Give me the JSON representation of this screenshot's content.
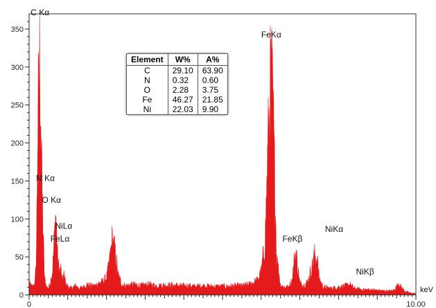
{
  "chart_data": {
    "type": "line",
    "title": "",
    "xlabel": "keV",
    "ylabel": "",
    "xlim": [
      0,
      10
    ],
    "ylim": [
      0,
      370
    ],
    "x_ticks": [
      {
        "value": 0,
        "label": "0"
      },
      {
        "value": 10,
        "label": "10.00"
      }
    ],
    "y_ticks": [
      {
        "value": 0,
        "label": "0"
      },
      {
        "value": 50,
        "label": "50"
      },
      {
        "value": 100,
        "label": "100"
      },
      {
        "value": 150,
        "label": "150"
      },
      {
        "value": 200,
        "label": "200"
      },
      {
        "value": 250,
        "label": "250"
      },
      {
        "value": 300,
        "label": "300"
      },
      {
        "value": 350,
        "label": "350"
      }
    ],
    "series": [
      {
        "color": "#e41a1c",
        "points": [
          [
            0.0,
            18
          ],
          [
            0.05,
            14
          ],
          [
            0.1,
            12
          ],
          [
            0.15,
            20
          ],
          [
            0.18,
            40
          ],
          [
            0.2,
            120
          ],
          [
            0.22,
            250
          ],
          [
            0.26,
            325
          ],
          [
            0.28,
            368
          ],
          [
            0.3,
            300
          ],
          [
            0.32,
            200
          ],
          [
            0.35,
            120
          ],
          [
            0.38,
            60
          ],
          [
            0.4,
            25
          ],
          [
            0.45,
            12
          ],
          [
            0.5,
            10
          ],
          [
            0.55,
            20
          ],
          [
            0.6,
            35
          ],
          [
            0.63,
            60
          ],
          [
            0.65,
            85
          ],
          [
            0.67,
            105
          ],
          [
            0.69,
            128
          ],
          [
            0.71,
            95
          ],
          [
            0.74,
            55
          ],
          [
            0.78,
            35
          ],
          [
            0.82,
            40
          ],
          [
            0.85,
            22
          ],
          [
            0.9,
            30
          ],
          [
            0.95,
            18
          ],
          [
            1.0,
            12
          ],
          [
            1.1,
            10
          ],
          [
            1.2,
            14
          ],
          [
            1.3,
            10
          ],
          [
            1.4,
            12
          ],
          [
            1.5,
            16
          ],
          [
            1.6,
            14
          ],
          [
            1.7,
            14
          ],
          [
            1.8,
            18
          ],
          [
            1.9,
            20
          ],
          [
            2.0,
            26
          ],
          [
            2.05,
            40
          ],
          [
            2.1,
            60
          ],
          [
            2.15,
            85
          ],
          [
            2.2,
            72
          ],
          [
            2.25,
            55
          ],
          [
            2.3,
            30
          ],
          [
            2.4,
            16
          ],
          [
            2.5,
            14
          ],
          [
            2.7,
            16
          ],
          [
            2.9,
            14
          ],
          [
            3.1,
            16
          ],
          [
            3.3,
            14
          ],
          [
            3.5,
            15
          ],
          [
            3.7,
            15
          ],
          [
            3.9,
            14
          ],
          [
            4.1,
            14
          ],
          [
            4.3,
            13
          ],
          [
            4.5,
            14
          ],
          [
            4.7,
            13
          ],
          [
            4.9,
            13
          ],
          [
            5.1,
            13
          ],
          [
            5.3,
            14
          ],
          [
            5.5,
            14
          ],
          [
            5.7,
            16
          ],
          [
            5.9,
            22
          ],
          [
            6.0,
            35
          ],
          [
            6.1,
            80
          ],
          [
            6.18,
            230
          ],
          [
            6.22,
            300
          ],
          [
            6.26,
            333
          ],
          [
            6.3,
            290
          ],
          [
            6.34,
            200
          ],
          [
            6.4,
            60
          ],
          [
            6.5,
            15
          ],
          [
            6.6,
            12
          ],
          [
            6.7,
            12
          ],
          [
            6.8,
            22
          ],
          [
            6.85,
            50
          ],
          [
            6.9,
            65
          ],
          [
            6.95,
            40
          ],
          [
            7.0,
            18
          ],
          [
            7.1,
            15
          ],
          [
            7.2,
            20
          ],
          [
            7.3,
            40
          ],
          [
            7.38,
            60
          ],
          [
            7.45,
            55
          ],
          [
            7.5,
            25
          ],
          [
            7.6,
            12
          ],
          [
            7.8,
            10
          ],
          [
            8.0,
            12
          ],
          [
            8.2,
            14
          ],
          [
            8.3,
            16
          ],
          [
            8.4,
            10
          ],
          [
            8.6,
            8
          ],
          [
            8.8,
            8
          ],
          [
            9.0,
            7
          ],
          [
            9.2,
            6
          ],
          [
            9.4,
            6
          ],
          [
            9.5,
            12
          ],
          [
            9.55,
            18
          ],
          [
            9.62,
            12
          ],
          [
            9.7,
            6
          ],
          [
            9.85,
            3
          ],
          [
            10.0,
            2
          ]
        ]
      }
    ],
    "peak_labels": [
      {
        "text": "C Kα",
        "x": 0.28,
        "y": 368
      },
      {
        "text": "N Kα",
        "x": 0.39,
        "y": 150
      },
      {
        "text": "O Kα",
        "x": 0.52,
        "y": 121
      },
      {
        "text": "NiLα",
        "x": 0.98,
        "y": 87
      },
      {
        "text": "FeLα",
        "x": 0.9,
        "y": 70
      },
      {
        "text": "FeKα",
        "x": 6.26,
        "y": 339
      },
      {
        "text": "FeKβ",
        "x": 7.0,
        "y": 70
      },
      {
        "text": "NiKα",
        "x": 7.65,
        "y": 83
      },
      {
        "text": "NiKβ",
        "x": 8.45,
        "y": 27
      }
    ]
  },
  "composition_table": {
    "headers": [
      "Element",
      "W%",
      "A%"
    ],
    "rows": [
      [
        "C",
        "29.10",
        "63.90"
      ],
      [
        "N",
        "0.32",
        "0.60"
      ],
      [
        "O",
        "2.28",
        "3.75"
      ],
      [
        "Fe",
        "46.27",
        "21.85"
      ],
      [
        "Ni",
        "22.03",
        "9.90"
      ]
    ]
  }
}
